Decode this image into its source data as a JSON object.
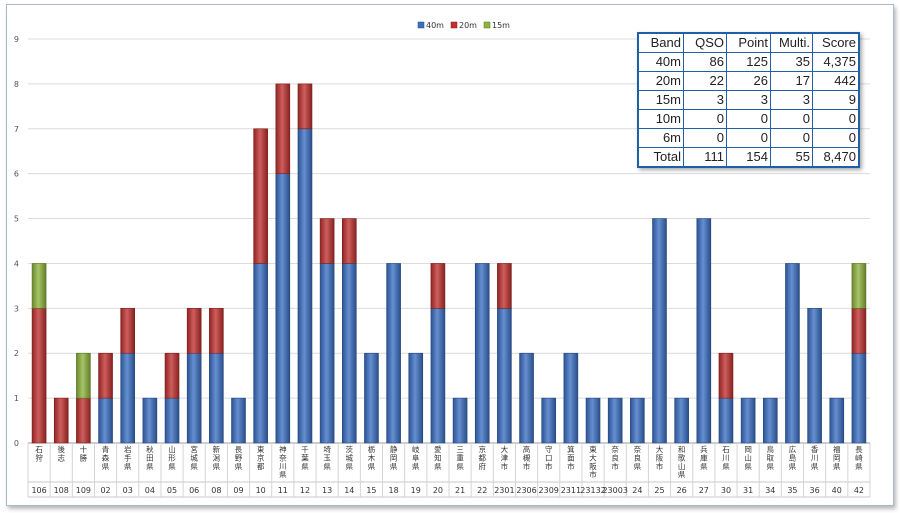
{
  "chart_data": {
    "type": "bar",
    "stacked": true,
    "ylim": [
      0,
      9
    ],
    "yticks": [
      0,
      1,
      2,
      3,
      4,
      5,
      6,
      7,
      8,
      9
    ],
    "grid": true,
    "legend_position": "top-center",
    "categories": [
      {
        "name": "石狩",
        "code": "106"
      },
      {
        "name": "後志",
        "code": "108"
      },
      {
        "name": "十勝",
        "code": "109"
      },
      {
        "name": "青森県",
        "code": "02"
      },
      {
        "name": "岩手県",
        "code": "03"
      },
      {
        "name": "秋田県",
        "code": "04"
      },
      {
        "name": "山形県",
        "code": "05"
      },
      {
        "name": "宮城県",
        "code": "06"
      },
      {
        "name": "新潟県",
        "code": "08"
      },
      {
        "name": "長野県",
        "code": "09"
      },
      {
        "name": "東京都",
        "code": "10"
      },
      {
        "name": "神奈川県",
        "code": "11"
      },
      {
        "name": "千葉県",
        "code": "12"
      },
      {
        "name": "埼玉県",
        "code": "13"
      },
      {
        "name": "茨城県",
        "code": "14"
      },
      {
        "name": "栃木県",
        "code": "15"
      },
      {
        "name": "静岡県",
        "code": "18"
      },
      {
        "name": "岐阜県",
        "code": "19"
      },
      {
        "name": "愛知県",
        "code": "20"
      },
      {
        "name": "三重県",
        "code": "21"
      },
      {
        "name": "京都府",
        "code": "22"
      },
      {
        "name": "大津市",
        "code": "2301"
      },
      {
        "name": "高槻市",
        "code": "2306"
      },
      {
        "name": "守口市",
        "code": "2309"
      },
      {
        "name": "箕面市",
        "code": "2311"
      },
      {
        "name": "東大阪市",
        "code": "23132"
      },
      {
        "name": "奈良市",
        "code": "23003"
      },
      {
        "name": "奈良県",
        "code": "24"
      },
      {
        "name": "大阪市",
        "code": "25"
      },
      {
        "name": "和歌山県",
        "code": "26"
      },
      {
        "name": "兵庫県",
        "code": "27"
      },
      {
        "name": "石川県",
        "code": "30"
      },
      {
        "name": "岡山県",
        "code": "31"
      },
      {
        "name": "鳥取県",
        "code": "34"
      },
      {
        "name": "広島県",
        "code": "35"
      },
      {
        "name": "香川県",
        "code": "36"
      },
      {
        "name": "福岡県",
        "code": "40"
      },
      {
        "name": "長崎県",
        "code": "42"
      }
    ],
    "series": [
      {
        "name": "40m",
        "color": "#3a6fc4",
        "values": [
          0,
          0,
          0,
          1,
          2,
          1,
          1,
          2,
          2,
          1,
          4,
          6,
          7,
          4,
          4,
          2,
          4,
          2,
          3,
          1,
          4,
          3,
          2,
          1,
          2,
          1,
          1,
          1,
          5,
          1,
          5,
          1,
          1,
          1,
          4,
          3,
          1,
          2
        ]
      },
      {
        "name": "20m",
        "color": "#c0302e",
        "values": [
          3,
          1,
          1,
          1,
          1,
          0,
          1,
          1,
          1,
          0,
          3,
          2,
          1,
          1,
          1,
          0,
          0,
          0,
          1,
          0,
          0,
          1,
          0,
          0,
          0,
          0,
          0,
          0,
          0,
          0,
          0,
          1,
          0,
          0,
          0,
          0,
          0,
          1
        ]
      },
      {
        "name": "15m",
        "color": "#8db43c",
        "values": [
          1,
          0,
          1,
          0,
          0,
          0,
          0,
          0,
          0,
          0,
          0,
          0,
          0,
          0,
          0,
          0,
          0,
          0,
          0,
          0,
          0,
          0,
          0,
          0,
          0,
          0,
          0,
          0,
          0,
          0,
          0,
          0,
          0,
          0,
          0,
          0,
          0,
          1
        ]
      }
    ]
  },
  "score_table": {
    "headers": [
      "Band",
      "QSO",
      "Point",
      "Multi.",
      "Score"
    ],
    "rows": [
      [
        "40m",
        "86",
        "125",
        "35",
        "4,375"
      ],
      [
        "20m",
        "22",
        "26",
        "17",
        "442"
      ],
      [
        "15m",
        "3",
        "3",
        "3",
        "9"
      ],
      [
        "10m",
        "0",
        "0",
        "0",
        "0"
      ],
      [
        "6m",
        "0",
        "0",
        "0",
        "0"
      ],
      [
        "Total",
        "111",
        "154",
        "55",
        "8,470"
      ]
    ]
  }
}
